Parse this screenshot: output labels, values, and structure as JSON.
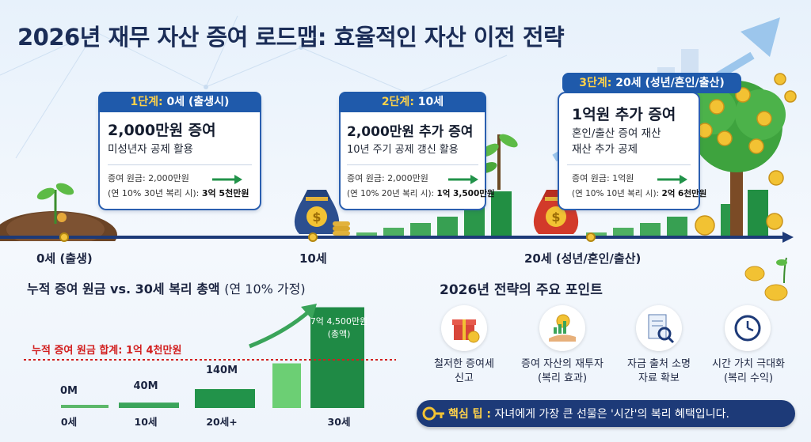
{
  "title": "2026년 재무 자산 증여 로드맵: 효율적인 자산 이전 전략",
  "stages": [
    {
      "stage_label": "1단계:",
      "age_label": "0세 (출생시)",
      "main": "2,000만원 증여",
      "sub1": "미성년자 공제 활용",
      "sub2": "",
      "principal": "증여 원금: 2,000만원",
      "compound_prefix": "(연 10% 30년 복리 시):",
      "compound_value": "3억 5천만원"
    },
    {
      "stage_label": "2단계:",
      "age_label": "10세",
      "main": "2,000만원 추가 증여",
      "sub1": "10년 주기 공제 갱신 활용",
      "sub2": "",
      "principal": "증여 원금: 2,000만원",
      "compound_prefix": "(연 10% 20년 복리 시):",
      "compound_value": "1억 3,500만원"
    },
    {
      "stage_label": "3단계:",
      "age_label": "20세 (성년/혼인/출산)",
      "main": "1억원 추가 증여",
      "sub1": "혼인/출산 증여 재산",
      "sub2": "재산 추가 공제",
      "principal": "증여 원금: 1억원",
      "compound_prefix": "(연 10% 10년 복리 시):",
      "compound_value": "2억 6천만원"
    }
  ],
  "timeline": {
    "labels": [
      "0세 (출생)",
      "10세",
      "20세 (성년/혼인/출산)"
    ]
  },
  "bottom_chart": {
    "title_bold": "누적 증여 원금 vs. 30세 복리 총액",
    "title_light": "(연 10% 가정)",
    "target_label": "누적 증여 원금 합계: 1억 4천만원",
    "total_label_1": "7억 4,500만원",
    "total_label_2": "(총액)"
  },
  "chart_data": {
    "type": "bar",
    "categories": [
      "0세",
      "10세",
      "20세+",
      "",
      "30세"
    ],
    "value_labels": [
      "0M",
      "40M",
      "140M",
      "",
      ""
    ],
    "values": [
      0,
      40,
      140,
      330,
      745
    ],
    "reference_line": 140,
    "ylim": [
      0,
      760
    ],
    "colors": [
      "#5cb86a",
      "#3aa45a",
      "#22934a",
      "#6ccf74",
      "#1f8a45"
    ]
  },
  "points": {
    "title": "2026년 전략의 주요 포인트",
    "items": [
      {
        "line1": "철저한 증여세",
        "line2": "신고",
        "icon": "gift-icon"
      },
      {
        "line1": "증여 자산의 재투자",
        "line2": "(복리 효과)",
        "icon": "money-hand-icon"
      },
      {
        "line1": "자금 출처 소명",
        "line2": "자료 확보",
        "icon": "document-search-icon"
      },
      {
        "line1": "시간 가치 극대화",
        "line2": "(복리 수익)",
        "icon": "clock-icon"
      }
    ]
  },
  "tip": {
    "key": "핵심 팁 :",
    "text": "자녀에게 가장 큰 선물은 '시간'의 복리 혜택입니다."
  }
}
